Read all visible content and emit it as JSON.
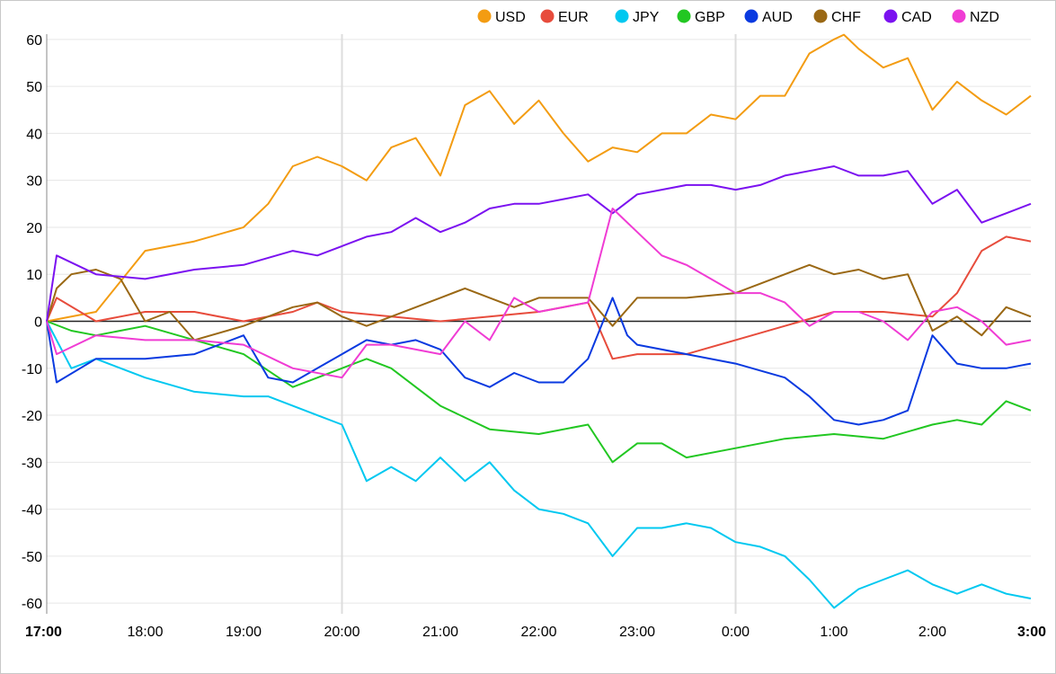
{
  "chart_data": {
    "type": "line",
    "title": "",
    "xlabel": "",
    "ylabel": "",
    "ylim": [
      -62,
      62
    ],
    "y_ticks": [
      60,
      50,
      40,
      30,
      20,
      10,
      0,
      -10,
      -20,
      -30,
      -40,
      -50,
      -60
    ],
    "x_ticks": [
      {
        "label": "17:00",
        "bold": true
      },
      {
        "label": "18:00",
        "bold": false
      },
      {
        "label": "19:00",
        "bold": false
      },
      {
        "label": "20:00",
        "bold": false
      },
      {
        "label": "21:00",
        "bold": false
      },
      {
        "label": "22:00",
        "bold": false
      },
      {
        "label": "23:00",
        "bold": false
      },
      {
        "label": "0:00",
        "bold": false
      },
      {
        "label": "1:00",
        "bold": false
      },
      {
        "label": "2:00",
        "bold": false
      },
      {
        "label": "3:00",
        "bold": true
      }
    ],
    "x_range_hours": [
      0,
      10
    ],
    "vertical_gridlines_at_hours": [
      3,
      7
    ],
    "legend_position": "top-right",
    "series": [
      {
        "name": "USD",
        "color": "#f39c12",
        "x": [
          0,
          0.5,
          1,
          1.25,
          1.5,
          2,
          2.25,
          2.5,
          2.75,
          3,
          3.25,
          3.5,
          3.75,
          4,
          4.25,
          4.5,
          4.75,
          5,
          5.25,
          5.5,
          5.75,
          6,
          6.25,
          6.5,
          6.75,
          7,
          7.25,
          7.5,
          7.75,
          8,
          8.1,
          8.25,
          8.5,
          8.75,
          9,
          9.25,
          9.5,
          9.75,
          10
        ],
        "y": [
          0,
          2,
          15,
          16,
          17,
          20,
          25,
          33,
          35,
          33,
          30,
          37,
          39,
          31,
          46,
          49,
          42,
          47,
          40,
          34,
          37,
          36,
          40,
          40,
          44,
          43,
          48,
          48,
          57,
          60,
          61,
          58,
          54,
          56,
          45,
          51,
          47,
          44,
          48
        ]
      },
      {
        "name": "EUR",
        "color": "#e74c3c",
        "x": [
          0,
          0.1,
          0.5,
          1,
          1.5,
          2,
          2.5,
          2.75,
          3,
          3.5,
          4,
          4.5,
          5,
          5.5,
          5.75,
          6,
          6.5,
          7,
          7.5,
          8,
          8.5,
          9,
          9.25,
          9.5,
          9.75,
          10
        ],
        "y": [
          0,
          5,
          0,
          2,
          2,
          0,
          2,
          4,
          2,
          1,
          0,
          1,
          2,
          4,
          -8,
          -7,
          -7,
          -4,
          -1,
          2,
          2,
          1,
          6,
          15,
          18,
          17
        ]
      },
      {
        "name": "JPY",
        "color": "#00c8f0",
        "x": [
          0,
          0.25,
          0.5,
          1,
          1.5,
          2,
          2.25,
          2.5,
          2.75,
          3,
          3.25,
          3.5,
          3.75,
          4,
          4.25,
          4.5,
          4.75,
          5,
          5.25,
          5.5,
          5.75,
          6,
          6.25,
          6.5,
          6.75,
          7,
          7.25,
          7.5,
          7.75,
          8,
          8.25,
          8.5,
          8.75,
          9,
          9.25,
          9.5,
          9.75,
          10
        ],
        "y": [
          0,
          -10,
          -8,
          -12,
          -15,
          -16,
          -16,
          -18,
          -20,
          -22,
          -34,
          -31,
          -34,
          -29,
          -34,
          -30,
          -36,
          -40,
          -41,
          -43,
          -50,
          -44,
          -44,
          -43,
          -44,
          -47,
          -48,
          -50,
          -55,
          -61,
          -57,
          -55,
          -53,
          -56,
          -58,
          -56,
          -58,
          -59
        ]
      },
      {
        "name": "GBP",
        "color": "#22c722",
        "x": [
          0,
          0.25,
          0.5,
          1,
          1.5,
          2,
          2.5,
          3,
          3.25,
          3.5,
          4,
          4.5,
          5,
          5.5,
          5.75,
          6,
          6.25,
          6.5,
          7,
          7.5,
          8,
          8.5,
          9,
          9.25,
          9.5,
          9.75,
          10
        ],
        "y": [
          0,
          -2,
          -3,
          -1,
          -4,
          -7,
          -14,
          -10,
          -8,
          -10,
          -18,
          -23,
          -24,
          -22,
          -30,
          -26,
          -26,
          -29,
          -27,
          -25,
          -24,
          -25,
          -22,
          -21,
          -22,
          -17,
          -19
        ]
      },
      {
        "name": "AUD",
        "color": "#0a3ae0",
        "x": [
          0,
          0.1,
          0.5,
          1,
          1.5,
          2,
          2.25,
          2.5,
          2.75,
          3,
          3.25,
          3.5,
          3.75,
          4,
          4.25,
          4.5,
          4.75,
          5,
          5.25,
          5.5,
          5.75,
          5.9,
          6,
          6.5,
          7,
          7.5,
          7.75,
          8,
          8.25,
          8.5,
          8.75,
          9,
          9.25,
          9.5,
          9.75,
          10
        ],
        "y": [
          0,
          -13,
          -8,
          -8,
          -7,
          -3,
          -12,
          -13,
          -10,
          -7,
          -4,
          -5,
          -4,
          -6,
          -12,
          -14,
          -11,
          -13,
          -13,
          -8,
          5,
          -3,
          -5,
          -7,
          -9,
          -12,
          -16,
          -21,
          -22,
          -21,
          -19,
          -3,
          -9,
          -10,
          -10,
          -9
        ]
      },
      {
        "name": "CHF",
        "color": "#9a6814",
        "x": [
          0,
          0.1,
          0.25,
          0.5,
          0.75,
          1,
          1.25,
          1.5,
          2,
          2.5,
          2.75,
          3,
          3.25,
          3.5,
          4,
          4.25,
          4.5,
          4.75,
          5,
          5.5,
          5.75,
          6,
          6.5,
          7,
          7.25,
          7.5,
          7.75,
          8,
          8.25,
          8.5,
          8.75,
          9,
          9.25,
          9.5,
          9.75,
          10
        ],
        "y": [
          0,
          7,
          10,
          11,
          9,
          0,
          2,
          -4,
          -1,
          3,
          4,
          1,
          -1,
          1,
          5,
          7,
          5,
          3,
          5,
          5,
          -1,
          5,
          5,
          6,
          8,
          10,
          12,
          10,
          11,
          9,
          10,
          -2,
          1,
          -3,
          3,
          1
        ]
      },
      {
        "name": "CAD",
        "color": "#7b12f0",
        "x": [
          0,
          0.1,
          0.5,
          1,
          1.5,
          2,
          2.5,
          2.75,
          3,
          3.25,
          3.5,
          3.75,
          4,
          4.25,
          4.5,
          4.75,
          5,
          5.25,
          5.5,
          5.75,
          6,
          6.25,
          6.5,
          6.75,
          7,
          7.25,
          7.5,
          7.75,
          8,
          8.25,
          8.5,
          8.75,
          9,
          9.25,
          9.5,
          9.75,
          10
        ],
        "y": [
          0,
          14,
          10,
          9,
          11,
          12,
          15,
          14,
          16,
          18,
          19,
          22,
          19,
          21,
          24,
          25,
          25,
          26,
          27,
          23,
          27,
          28,
          29,
          29,
          28,
          29,
          31,
          32,
          33,
          31,
          31,
          32,
          25,
          28,
          21,
          23,
          25
        ]
      },
      {
        "name": "NZD",
        "color": "#f03cd4",
        "x": [
          0,
          0.1,
          0.5,
          1,
          1.5,
          2,
          2.5,
          3,
          3.25,
          3.5,
          4,
          4.25,
          4.5,
          4.75,
          5,
          5.25,
          5.5,
          5.75,
          6,
          6.25,
          6.5,
          6.75,
          7,
          7.25,
          7.5,
          7.75,
          8,
          8.25,
          8.5,
          8.75,
          9,
          9.25,
          9.5,
          9.75,
          10
        ],
        "y": [
          0,
          -7,
          -3,
          -4,
          -4,
          -5,
          -10,
          -12,
          -5,
          -5,
          -7,
          0,
          -4,
          5,
          2,
          3,
          4,
          24,
          19,
          14,
          12,
          9,
          6,
          6,
          4,
          -1,
          2,
          2,
          0,
          -4,
          2,
          3,
          0,
          -5,
          -4
        ]
      }
    ]
  }
}
